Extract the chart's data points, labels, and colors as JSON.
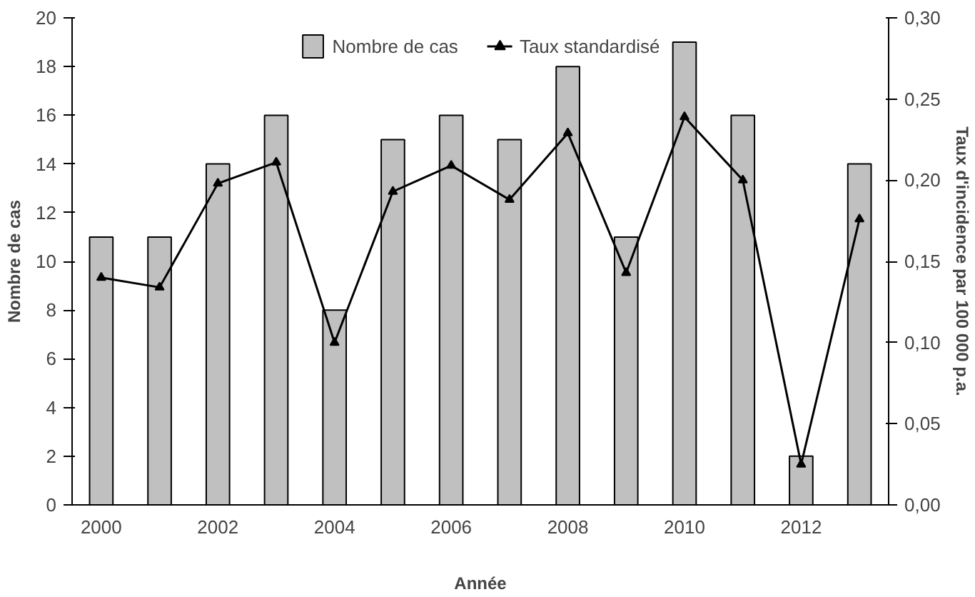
{
  "chart_data": {
    "type": "bar",
    "xlabel": "Année",
    "ylabel": "Nombre de cas",
    "y2label": "Taux d'incidence par 100 000 p.a.",
    "categories": [
      "2000",
      null,
      "2002",
      null,
      "2004",
      null,
      "2006",
      null,
      "2008",
      null,
      "2010",
      null,
      "2012",
      null
    ],
    "series": [
      {
        "name": "Nombre de cas",
        "color": "#c0c0c0",
        "values": [
          11,
          11,
          14,
          16,
          8,
          15,
          16,
          15,
          18,
          11,
          19,
          16,
          2,
          14
        ]
      },
      {
        "name": "Taux standardisé",
        "type": "line",
        "axis": "y2",
        "color": "#000000",
        "marker": "triangle",
        "values": [
          0.14,
          0.134,
          0.198,
          0.211,
          0.1,
          0.193,
          0.209,
          0.188,
          0.229,
          0.143,
          0.239,
          0.2,
          0.025,
          0.176
        ]
      }
    ],
    "ylim": [
      0,
      20
    ],
    "yticks": [
      0,
      2,
      4,
      6,
      8,
      10,
      12,
      14,
      16,
      18,
      20
    ],
    "y2lim": [
      0,
      0.3
    ],
    "y2ticks": [
      {
        "value": 0,
        "label": "0,00"
      },
      {
        "value": 0.05,
        "label": "0,05"
      },
      {
        "value": 0.1,
        "label": "0,10"
      },
      {
        "value": 0.15,
        "label": "0,15"
      },
      {
        "value": 0.2,
        "label": "0,20"
      },
      {
        "value": 0.25,
        "label": "0,25"
      },
      {
        "value": 0.3,
        "label": "0,30"
      }
    ],
    "grid": false,
    "legend": "top"
  }
}
